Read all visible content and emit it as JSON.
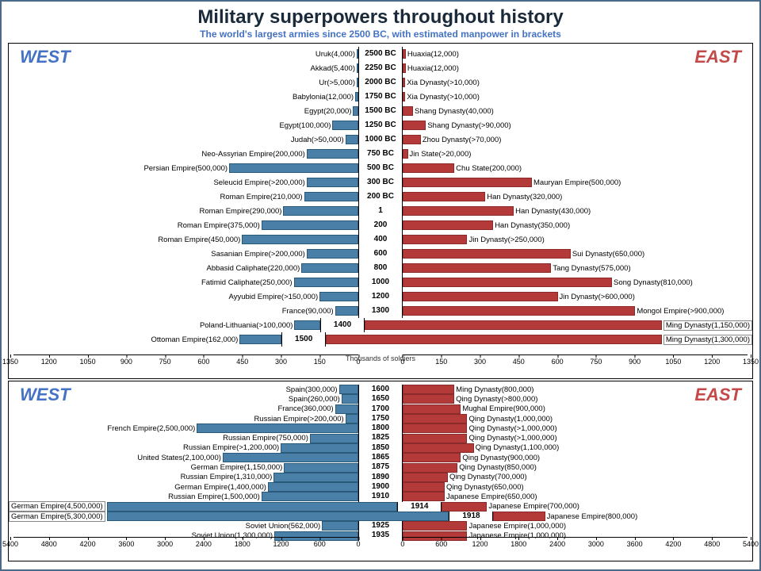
{
  "title": "Military superpowers throughout history",
  "subtitle": "The world's largest armies since 2500 BC, with estimated manpower in brackets",
  "labels": {
    "west": "WEST",
    "east": "EAST"
  },
  "axis_label": "Thousands of soldiers",
  "colors": {
    "west_bar": "#4a7fa8",
    "west_border": "#2a5a7a",
    "east_bar": "#b43a3a",
    "east_border": "#8a2a2a",
    "west_text": "#4472c4",
    "east_text": "#c44a4a",
    "border": "#4a6a8a"
  },
  "top_chart": {
    "max": 1350,
    "ticks": [
      1350,
      1200,
      1050,
      900,
      750,
      600,
      450,
      300,
      150,
      0
    ],
    "rows": [
      {
        "year": "2500 BC",
        "w": "Uruk(4,000)",
        "wv": 4,
        "e": "Huaxia(12,000)",
        "ev": 12
      },
      {
        "year": "2250 BC",
        "w": "Akkad(5,400)",
        "wv": 5.4,
        "e": "Huaxia(12,000)",
        "ev": 12
      },
      {
        "year": "2000 BC",
        "w": "Ur(>5,000)",
        "wv": 5,
        "e": "Xia Dynasty(>10,000)",
        "ev": 10
      },
      {
        "year": "1750 BC",
        "w": "Babylonia(12,000)",
        "wv": 12,
        "e": "Xia Dynasty(>10,000)",
        "ev": 10
      },
      {
        "year": "1500 BC",
        "w": "Egypt(20,000)",
        "wv": 20,
        "e": "Shang Dynasty(40,000)",
        "ev": 40
      },
      {
        "year": "1250 BC",
        "w": "Egypt(100,000)",
        "wv": 100,
        "e": "Shang Dynasty(>90,000)",
        "ev": 90
      },
      {
        "year": "1000 BC",
        "w": "Judah(>50,000)",
        "wv": 50,
        "e": "Zhou Dynasty(>70,000)",
        "ev": 70
      },
      {
        "year": "750 BC",
        "w": "Neo-Assyrian Empire(200,000)",
        "wv": 200,
        "e": "Jin State(>20,000)",
        "ev": 20
      },
      {
        "year": "500 BC",
        "w": "Persian Empire(500,000)",
        "wv": 500,
        "e": "Chu State(200,000)",
        "ev": 200
      },
      {
        "year": "300 BC",
        "w": "Seleucid Empire(>200,000)",
        "wv": 200,
        "e": "Mauryan Empire(500,000)",
        "ev": 500
      },
      {
        "year": "200 BC",
        "w": "Roman Empire(210,000)",
        "wv": 210,
        "e": "Han Dynasty(320,000)",
        "ev": 320
      },
      {
        "year": "1",
        "w": "Roman Empire(290,000)",
        "wv": 290,
        "e": "Han Dynasty(430,000)",
        "ev": 430
      },
      {
        "year": "200",
        "w": "Roman Empire(375,000)",
        "wv": 375,
        "e": "Han Dynasty(350,000)",
        "ev": 350
      },
      {
        "year": "400",
        "w": "Roman Empire(450,000)",
        "wv": 450,
        "e": "Jin Dynasty(>250,000)",
        "ev": 250
      },
      {
        "year": "600",
        "w": "Sasanian Empire(>200,000)",
        "wv": 200,
        "e": "Sui Dynasty(650,000)",
        "ev": 650
      },
      {
        "year": "800",
        "w": "Abbasid Caliphate(220,000)",
        "wv": 220,
        "e": "Tang Dynasty(575,000)",
        "ev": 575
      },
      {
        "year": "1000",
        "w": "Fatimid Caliphate(250,000)",
        "wv": 250,
        "e": "Song Dynasty(810,000)",
        "ev": 810
      },
      {
        "year": "1200",
        "w": "Ayyubid Empire(>150,000)",
        "wv": 150,
        "e": "Jin Dynasty(>600,000)",
        "ev": 600
      },
      {
        "year": "1300",
        "w": "France(90,000)",
        "wv": 90,
        "e": "Mongol Empire(>900,000)",
        "ev": 900
      },
      {
        "year": "1400",
        "w": "Poland-Lithuania(>100,000)",
        "wv": 100,
        "e": "Ming Dynasty(1,150,000)",
        "ev": 1150,
        "eboxed": true
      },
      {
        "year": "1500",
        "w": "Ottoman Empire(162,000)",
        "wv": 162,
        "e": "Ming Dynasty(1,300,000)",
        "ev": 1300,
        "eboxed": true
      }
    ]
  },
  "bot_chart": {
    "max": 5400,
    "ticks": [
      5400,
      4800,
      4200,
      3600,
      3000,
      2400,
      1800,
      1200,
      600,
      0
    ],
    "row_h": 13.2,
    "rows": [
      {
        "year": "1600",
        "w": "Spain(300,000)",
        "wv": 300,
        "e": "Ming Dynasty(800,000)",
        "ev": 800
      },
      {
        "year": "1650",
        "w": "Spain(260,000)",
        "wv": 260,
        "e": "Qing Dynasty(>800,000)",
        "ev": 800
      },
      {
        "year": "1700",
        "w": "France(360,000)",
        "wv": 360,
        "e": "Mughal Empire(900,000)",
        "ev": 900
      },
      {
        "year": "1750",
        "w": "Russian Empire(>200,000)",
        "wv": 200,
        "e": "Qing Dynasty(1,000,000)",
        "ev": 1000
      },
      {
        "year": "1800",
        "w": "French Empire(2,500,000)",
        "wv": 2500,
        "e": "Qing Dynasty(>1,000,000)",
        "ev": 1000
      },
      {
        "year": "1825",
        "w": "Russian Empire(750,000)",
        "wv": 750,
        "e": "Qing Dynasty(>1,000,000)",
        "ev": 1000
      },
      {
        "year": "1850",
        "w": "Russian Empire(>1,200,000)",
        "wv": 1200,
        "e": "Qing Dynasty(1,100,000)",
        "ev": 1100
      },
      {
        "year": "1865",
        "w": "United States(2,100,000)",
        "wv": 2100,
        "e": "Qing Dynasty(900,000)",
        "ev": 900
      },
      {
        "year": "1875",
        "w": "German Empire(1,150,000)",
        "wv": 1150,
        "e": "Qing Dynasty(850,000)",
        "ev": 850
      },
      {
        "year": "1890",
        "w": "Russian Empire(1,310,000)",
        "wv": 1310,
        "e": "Qing Dynasty(700,000)",
        "ev": 700
      },
      {
        "year": "1900",
        "w": "German Empire(1,400,000)",
        "wv": 1400,
        "e": "Qing Dynasty(650,000)",
        "ev": 650
      },
      {
        "year": "1910",
        "w": "Russian Empire(1,500,000)",
        "wv": 1500,
        "e": "Japanese Empire(650,000)",
        "ev": 650
      },
      {
        "year": "1914",
        "w": "German Empire(4,500,000)",
        "wv": 4500,
        "e": "Japanese Empire(700,000)",
        "ev": 700,
        "wboxed": true
      },
      {
        "year": "1918",
        "w": "German Empire(5,300,000)",
        "wv": 5300,
        "e": "Japanese Empire(800,000)",
        "ev": 800,
        "wboxed": true
      },
      {
        "year": "1925",
        "w": "Soviet Union(562,000)",
        "wv": 562,
        "e": "Japanese Empire(1,000,000)",
        "ev": 1000
      },
      {
        "year": "1935",
        "w": "Soviet Union(1,300,000)",
        "wv": 1300,
        "e": "Japanese Empire(1,000,000)",
        "ev": 1000
      }
    ]
  }
}
